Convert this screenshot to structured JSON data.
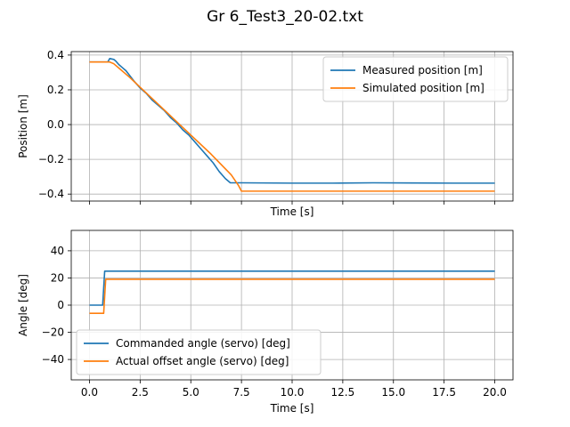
{
  "figure": {
    "title": "Gr 6_Test3_20-02.txt"
  },
  "colors": {
    "blue": "#1f77b4",
    "orange": "#ff7f0e",
    "grid": "#b0b0b0"
  },
  "chart_data": [
    {
      "type": "line",
      "xlabel": "Time [s]",
      "ylabel": "Position [m]",
      "xlim": [
        -0.9,
        20.9
      ],
      "ylim": [
        -0.44,
        0.42
      ],
      "xticks": [
        0,
        2.5,
        5,
        7.5,
        10,
        12.5,
        15,
        17.5,
        20
      ],
      "yticks": [
        -0.4,
        -0.2,
        0.0,
        0.2,
        0.4
      ],
      "ytick_labels": [
        "−0.4",
        "−0.2",
        "0.0",
        "0.2",
        "0.4"
      ],
      "show_xtick_labels": false,
      "grid": true,
      "legend": "upper right",
      "series": [
        {
          "name": "Measured position [m]",
          "color": "#1f77b4",
          "points": [
            [
              0,
              0.36
            ],
            [
              0.9,
              0.36
            ],
            [
              1.0,
              0.38
            ],
            [
              1.2,
              0.375
            ],
            [
              1.3,
              0.365
            ],
            [
              1.45,
              0.345
            ],
            [
              1.6,
              0.33
            ],
            [
              1.8,
              0.31
            ],
            [
              2.0,
              0.28
            ],
            [
              2.2,
              0.25
            ],
            [
              2.5,
              0.21
            ],
            [
              2.8,
              0.18
            ],
            [
              3.1,
              0.14
            ],
            [
              3.4,
              0.11
            ],
            [
              3.7,
              0.08
            ],
            [
              4.0,
              0.04
            ],
            [
              4.3,
              0.01
            ],
            [
              4.6,
              -0.03
            ],
            [
              4.9,
              -0.06
            ],
            [
              5.2,
              -0.1
            ],
            [
              5.5,
              -0.14
            ],
            [
              5.8,
              -0.18
            ],
            [
              6.1,
              -0.22
            ],
            [
              6.4,
              -0.27
            ],
            [
              6.7,
              -0.31
            ],
            [
              6.95,
              -0.335
            ],
            [
              7.5,
              -0.335
            ],
            [
              10,
              -0.337
            ],
            [
              12,
              -0.337
            ],
            [
              14,
              -0.335
            ],
            [
              16,
              -0.336
            ],
            [
              18,
              -0.337
            ],
            [
              20,
              -0.337
            ]
          ]
        },
        {
          "name": "Simulated position [m]",
          "color": "#ff7f0e",
          "points": [
            [
              0,
              0.36
            ],
            [
              1.0,
              0.36
            ],
            [
              1.2,
              0.35
            ],
            [
              1.5,
              0.32
            ],
            [
              2.0,
              0.27
            ],
            [
              3.0,
              0.16
            ],
            [
              4.0,
              0.05
            ],
            [
              5.0,
              -0.06
            ],
            [
              6.0,
              -0.17
            ],
            [
              7.0,
              -0.29
            ],
            [
              7.35,
              -0.35
            ],
            [
              7.5,
              -0.383
            ],
            [
              10,
              -0.383
            ],
            [
              15,
              -0.383
            ],
            [
              20,
              -0.383
            ]
          ]
        }
      ]
    },
    {
      "type": "line",
      "xlabel": "Time [s]",
      "ylabel": "Angle [deg]",
      "xlim": [
        -0.9,
        20.9
      ],
      "ylim": [
        -55,
        55
      ],
      "xticks": [
        0,
        2.5,
        5,
        7.5,
        10,
        12.5,
        15,
        17.5,
        20
      ],
      "xtick_labels": [
        "0.0",
        "2.5",
        "5.0",
        "7.5",
        "10.0",
        "12.5",
        "15.0",
        "17.5",
        "20.0"
      ],
      "yticks": [
        -40,
        -20,
        0,
        20,
        40
      ],
      "ytick_labels": [
        "−40",
        "−20",
        "0",
        "20",
        "40"
      ],
      "show_xtick_labels": true,
      "grid": true,
      "legend": "lower left",
      "series": [
        {
          "name": "Commanded angle (servo) [deg]",
          "color": "#1f77b4",
          "points": [
            [
              0,
              0
            ],
            [
              0.65,
              0
            ],
            [
              0.75,
              25
            ],
            [
              20,
              25
            ]
          ]
        },
        {
          "name": "Actual offset angle (servo) [deg]",
          "color": "#ff7f0e",
          "points": [
            [
              0,
              -6
            ],
            [
              0.7,
              -6
            ],
            [
              0.8,
              19
            ],
            [
              20,
              19
            ]
          ]
        }
      ]
    }
  ]
}
